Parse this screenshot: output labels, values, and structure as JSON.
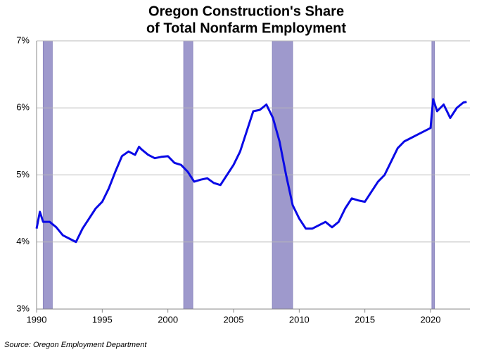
{
  "chart_data": {
    "type": "line",
    "title": [
      "Oregon Construction's Share",
      "of Total Nonfarm Employment"
    ],
    "source": "Source: Oregon Employment Department",
    "x": [
      1990.0,
      1990.25,
      1990.5,
      1991.0,
      1991.5,
      1992.0,
      1992.5,
      1993.0,
      1993.5,
      1994.0,
      1994.5,
      1995.0,
      1995.5,
      1996.0,
      1996.5,
      1997.0,
      1997.5,
      1997.8,
      1998.0,
      1998.5,
      1999.0,
      1999.5,
      2000.0,
      2000.5,
      2001.0,
      2001.5,
      2002.0,
      2002.5,
      2003.0,
      2003.5,
      2004.0,
      2004.5,
      2005.0,
      2005.5,
      2006.0,
      2006.5,
      2007.0,
      2007.5,
      2008.0,
      2008.5,
      2009.0,
      2009.5,
      2010.0,
      2010.5,
      2011.0,
      2011.5,
      2012.0,
      2012.5,
      2013.0,
      2013.5,
      2014.0,
      2014.5,
      2015.0,
      2015.5,
      2016.0,
      2016.5,
      2017.0,
      2017.5,
      2018.0,
      2018.5,
      2019.0,
      2019.5,
      2020.0,
      2020.2,
      2020.5,
      2021.0,
      2021.5,
      2022.0,
      2022.5,
      2022.75
    ],
    "values": [
      4.2,
      4.45,
      4.3,
      4.3,
      4.22,
      4.1,
      4.05,
      4.0,
      4.2,
      4.35,
      4.5,
      4.6,
      4.8,
      5.05,
      5.28,
      5.35,
      5.3,
      5.42,
      5.38,
      5.3,
      5.25,
      5.27,
      5.28,
      5.18,
      5.15,
      5.05,
      4.9,
      4.93,
      4.95,
      4.88,
      4.85,
      5.0,
      5.15,
      5.35,
      5.65,
      5.95,
      5.97,
      6.05,
      5.85,
      5.5,
      5.0,
      4.55,
      4.35,
      4.2,
      4.2,
      4.25,
      4.3,
      4.22,
      4.3,
      4.5,
      4.65,
      4.62,
      4.6,
      4.75,
      4.9,
      5.0,
      5.2,
      5.4,
      5.5,
      5.55,
      5.6,
      5.65,
      5.7,
      6.13,
      5.95,
      6.05,
      5.85,
      6.0,
      6.08,
      6.09
    ],
    "color": "#0a0ae6",
    "shaded_periods": [
      [
        1990.5,
        1991.2
      ],
      [
        2001.2,
        2001.9
      ],
      [
        2007.95,
        2009.5
      ],
      [
        2020.1,
        2020.3
      ]
    ],
    "shade_color": "#9e99cc",
    "xlim": [
      1990,
      2023
    ],
    "xticks": [
      1990,
      1995,
      2000,
      2005,
      2010,
      2015,
      2020
    ],
    "ylim": [
      3,
      7
    ],
    "yticks": [
      {
        "value": 3,
        "label": "3%"
      },
      {
        "value": 4,
        "label": "4%"
      },
      {
        "value": 5,
        "label": "5%"
      },
      {
        "value": 6,
        "label": "6%"
      },
      {
        "value": 7,
        "label": "7%"
      }
    ],
    "grid": true
  }
}
